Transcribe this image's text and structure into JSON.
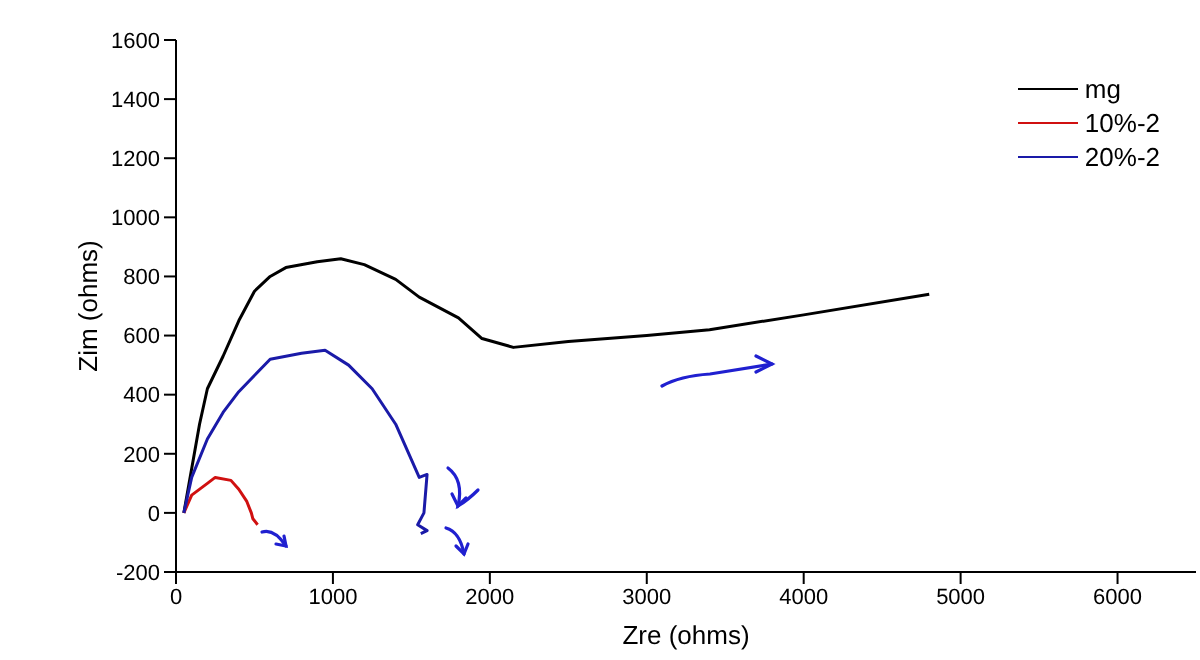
{
  "chart_data": {
    "type": "line",
    "xlabel": "Zre (ohms)",
    "ylabel": "Zim (ohms)",
    "xlim": [
      0,
      6500
    ],
    "xticks": [
      0,
      1000,
      2000,
      3000,
      4000,
      5000,
      6000
    ],
    "ylim": [
      -200,
      1600
    ],
    "yticks": [
      -200,
      0,
      200,
      400,
      600,
      800,
      1000,
      1200,
      1400,
      1600
    ],
    "legend": "top right",
    "grid": false,
    "marker": "none",
    "line_style": "solid",
    "series": [
      {
        "name": "mg",
        "color": "#000000",
        "x": [
          50,
          100,
          150,
          200,
          300,
          400,
          500,
          600,
          700,
          900,
          1050,
          1200,
          1400,
          1550,
          1800,
          1950,
          2150,
          2500,
          3000,
          3400,
          4000,
          4800
        ],
        "values": [
          0,
          150,
          300,
          420,
          530,
          650,
          750,
          800,
          830,
          850,
          860,
          840,
          790,
          730,
          660,
          590,
          560,
          580,
          600,
          620,
          670,
          740
        ]
      },
      {
        "name": "10%-2",
        "color": "#d01010",
        "x": [
          50,
          100,
          200,
          250,
          350,
          400,
          450,
          480,
          490,
          520
        ],
        "values": [
          0,
          60,
          100,
          120,
          110,
          80,
          40,
          0,
          -20,
          -40
        ]
      },
      {
        "name": "20%-2",
        "color": "#1a1aa8",
        "x": [
          50,
          100,
          200,
          300,
          400,
          600,
          800,
          950,
          1100,
          1250,
          1400,
          1500,
          1550,
          1600,
          1580,
          1540,
          1600,
          1560
        ],
        "values": [
          0,
          120,
          250,
          340,
          410,
          520,
          540,
          550,
          500,
          420,
          300,
          180,
          120,
          130,
          0,
          -40,
          -60,
          -70
        ]
      }
    ]
  }
}
